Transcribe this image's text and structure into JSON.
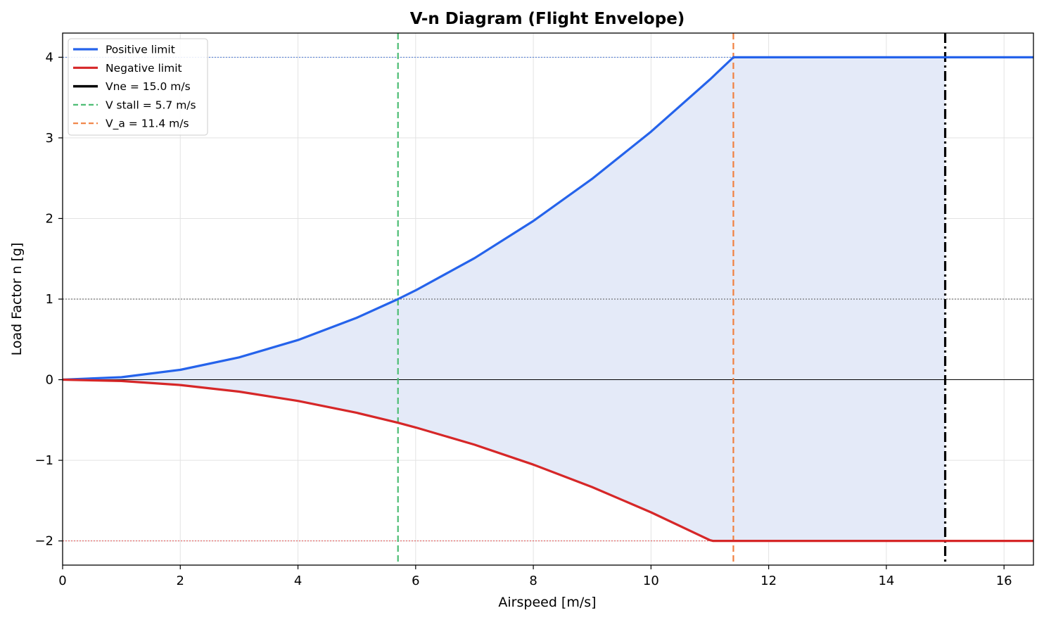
{
  "chart_data": {
    "type": "line",
    "title": "V-n Diagram (Flight Envelope)",
    "xlabel": "Airspeed  [m/s]",
    "ylabel": "Load Factor  n  [g]",
    "xlim": [
      0,
      16.5
    ],
    "ylim": [
      -2.3,
      4.3
    ],
    "xticks": [
      0,
      2,
      4,
      6,
      8,
      10,
      12,
      14,
      16
    ],
    "yticks": [
      -2,
      -1,
      0,
      1,
      2,
      3,
      4
    ],
    "ytick_labels": [
      "−2",
      "−1",
      "0",
      "1",
      "2",
      "3",
      "4"
    ],
    "grid": true,
    "legend_position": "upper-left",
    "series": [
      {
        "name": "Positive limit",
        "color": "#2563eb",
        "style": "solid",
        "x": [
          0,
          1,
          2,
          3,
          4,
          5,
          5.7,
          6,
          7,
          8,
          9,
          10,
          11,
          11.4,
          12,
          13,
          14,
          15,
          16,
          16.5
        ],
        "y": [
          0,
          0.031,
          0.123,
          0.277,
          0.492,
          0.769,
          1.0,
          1.108,
          1.508,
          1.969,
          2.492,
          3.077,
          3.723,
          4.0,
          4.0,
          4.0,
          4.0,
          4.0,
          4.0,
          4.0
        ]
      },
      {
        "name": "Negative limit",
        "color": "#d62728",
        "style": "solid",
        "x": [
          0,
          1,
          2,
          3,
          4,
          5,
          5.7,
          6,
          7,
          8,
          9,
          10,
          11,
          11.05,
          12,
          13,
          14,
          15,
          16,
          16.5
        ],
        "y": [
          0,
          -0.016,
          -0.066,
          -0.148,
          -0.263,
          -0.411,
          -0.534,
          -0.592,
          -0.806,
          -1.053,
          -1.332,
          -1.645,
          -1.99,
          -2.0,
          -2.0,
          -2.0,
          -2.0,
          -2.0,
          -2.0,
          -2.0
        ]
      }
    ],
    "vlines": [
      {
        "name": "Vne = 15.0 m/s",
        "x": 15.0,
        "color": "#000000",
        "style": "dashdot"
      },
      {
        "name": "V stall = 5.7 m/s",
        "x": 5.7,
        "color": "#4dbd74",
        "style": "dashed"
      },
      {
        "name": "V_a = 11.4 m/s",
        "x": 11.4,
        "color": "#f08040",
        "style": "dashed"
      }
    ],
    "hlines": [
      {
        "y": 4,
        "color": "#4a78d4",
        "style": "dotted"
      },
      {
        "y": 1,
        "color": "#555555",
        "style": "dotted"
      },
      {
        "y": 0,
        "color": "#000000",
        "style": "solid"
      },
      {
        "y": -2,
        "color": "#e05050",
        "style": "dotted"
      }
    ],
    "fill_color": "#e4eaf8"
  }
}
